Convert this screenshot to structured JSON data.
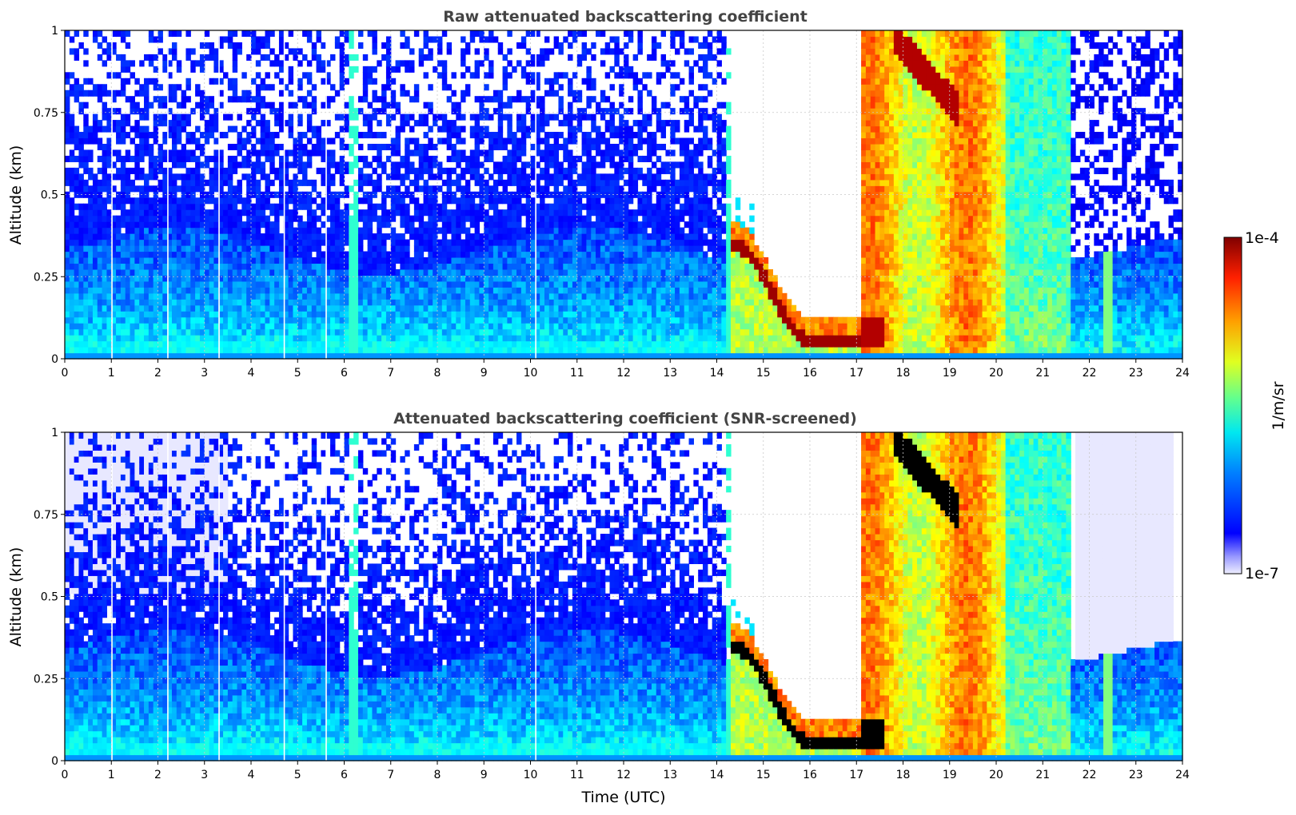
{
  "chart_data": [
    {
      "type": "heatmap",
      "title": "Raw attenuated backscattering coefficient",
      "xlabel": "",
      "ylabel": "Altitude (km)",
      "xlim": [
        0,
        24
      ],
      "ylim": [
        0,
        1
      ],
      "x_ticks": [
        "0",
        "1",
        "2",
        "3",
        "4",
        "5",
        "6",
        "7",
        "8",
        "9",
        "10",
        "11",
        "12",
        "13",
        "14",
        "15",
        "16",
        "17",
        "18",
        "19",
        "20",
        "21",
        "22",
        "23",
        "24"
      ],
      "y_ticks": [
        "0",
        "0.25",
        "0.5",
        "0.75",
        "1"
      ],
      "grid": true,
      "colorscale": "jet",
      "scale": "log",
      "features": {
        "clear_sky_gap_hours": [
          14.4,
          17.1
        ],
        "cloud_base_km_start": 0.37,
        "cloud_base_km_end": 0.08,
        "fog_hours": [
          17.1,
          20.2
        ]
      }
    },
    {
      "type": "heatmap",
      "title": "Attenuated backscattering coefficient (SNR-screened)",
      "xlabel": "Time (UTC)",
      "ylabel": "Altitude (km)",
      "xlim": [
        0,
        24
      ],
      "ylim": [
        0,
        1
      ],
      "x_ticks": [
        "0",
        "1",
        "2",
        "3",
        "4",
        "5",
        "6",
        "7",
        "8",
        "9",
        "10",
        "11",
        "12",
        "13",
        "14",
        "15",
        "16",
        "17",
        "18",
        "19",
        "20",
        "21",
        "22",
        "23",
        "24"
      ],
      "y_ticks": [
        "0",
        "0.25",
        "0.5",
        "0.75",
        "1"
      ],
      "grid": true,
      "colorscale": "jet",
      "scale": "log",
      "saturated_color": "#000000"
    }
  ],
  "colorbar": {
    "max_label": "1e-4",
    "min_label": "1e-7",
    "unit_label": "1/m/sr"
  }
}
